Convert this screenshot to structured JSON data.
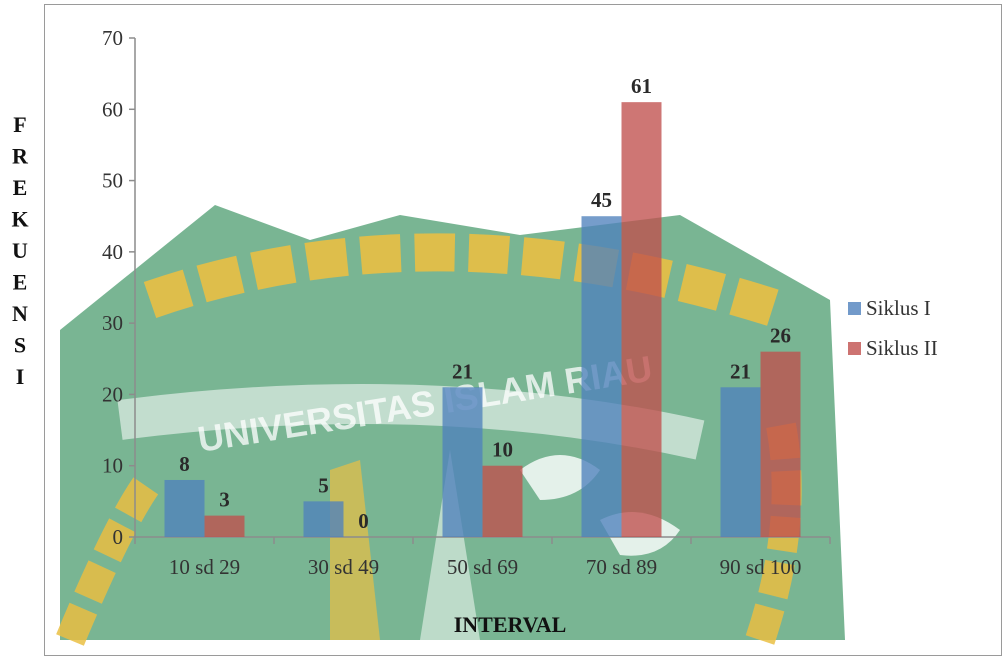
{
  "chart_data": {
    "type": "bar",
    "title": "",
    "xlabel": "INTERVAL",
    "ylabel": "FREKUENSI",
    "categories": [
      "10 sd 29",
      "30 sd 49",
      "50 sd 69",
      "70 sd 89",
      "90 sd 100"
    ],
    "series": [
      {
        "name": "Siklus I",
        "values": [
          8,
          5,
          21,
          45,
          21
        ],
        "color": "#4f81bd"
      },
      {
        "name": "Siklus II",
        "values": [
          3,
          0,
          10,
          61,
          26
        ],
        "color": "#c0504d"
      }
    ],
    "ylim": [
      0,
      70
    ],
    "yticks": [
      0,
      10,
      20,
      30,
      40,
      50,
      60,
      70
    ],
    "grid": false,
    "legend_position": "right"
  },
  "watermark": {
    "text": "UNIVERSITAS ISLAM RIAU",
    "colors": {
      "green": "#2e8b57",
      "gold": "#e6b422"
    }
  }
}
